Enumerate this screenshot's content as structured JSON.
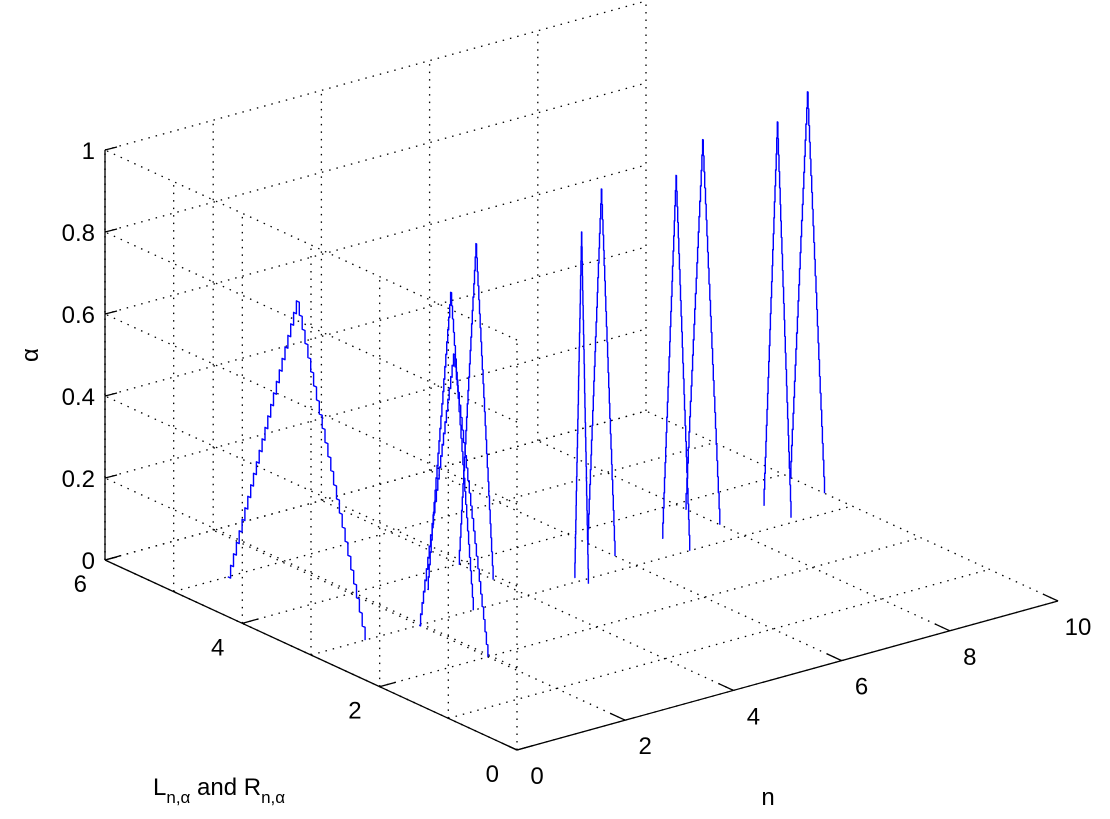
{
  "chart_data": {
    "type": "line",
    "projection": "3d",
    "xlabel": "n",
    "ylabel_main": "L",
    "ylabel_sub1": "n,α",
    "ylabel_mid": " and R",
    "ylabel_sub2": "n,α",
    "zlabel": "α",
    "xlim": [
      0,
      10
    ],
    "ylim": [
      0,
      6
    ],
    "zlim": [
      0,
      1
    ],
    "xticks": [
      "0",
      "2",
      "4",
      "6",
      "8",
      "10"
    ],
    "yticks": [
      "2",
      "4",
      "6"
    ],
    "zticks": [
      "0",
      "0.2",
      "0.4",
      "0.6",
      "0.8",
      "1"
    ],
    "grid": true,
    "line_color": "#0000ff",
    "series": [
      {
        "n": 1,
        "peak": 4.0,
        "alpha_max": 0.75,
        "ylo": 3.0,
        "yhi": 5.0
      },
      {
        "n": 2,
        "peak": 2.5,
        "alpha_max": 0.7,
        "ylo": 2.0,
        "yhi": 3.0
      },
      {
        "n": 3,
        "peak": 3.33,
        "alpha_max": 0.75,
        "ylo": 3.0,
        "yhi": 3.67
      },
      {
        "n": 4,
        "peak": 3.75,
        "alpha_max": 0.8,
        "ylo": 3.5,
        "yhi": 4.0
      },
      {
        "n": 5,
        "peak": 3.0,
        "alpha_max": 0.85,
        "ylo": 2.9,
        "yhi": 3.1
      },
      {
        "n": 6,
        "peak": 3.5,
        "alpha_max": 0.88,
        "ylo": 3.3,
        "yhi": 3.7
      },
      {
        "n": 7,
        "peak": 3.2,
        "alpha_max": 0.9,
        "ylo": 3.0,
        "yhi": 3.4
      },
      {
        "n": 8,
        "peak": 3.6,
        "alpha_max": 0.92,
        "ylo": 3.35,
        "yhi": 3.85
      },
      {
        "n": 9,
        "peak": 3.3,
        "alpha_max": 0.95,
        "ylo": 3.1,
        "yhi": 3.5
      },
      {
        "n": 10,
        "peak": 3.65,
        "alpha_max": 0.96,
        "ylo": 3.4,
        "yhi": 3.9
      }
    ]
  }
}
